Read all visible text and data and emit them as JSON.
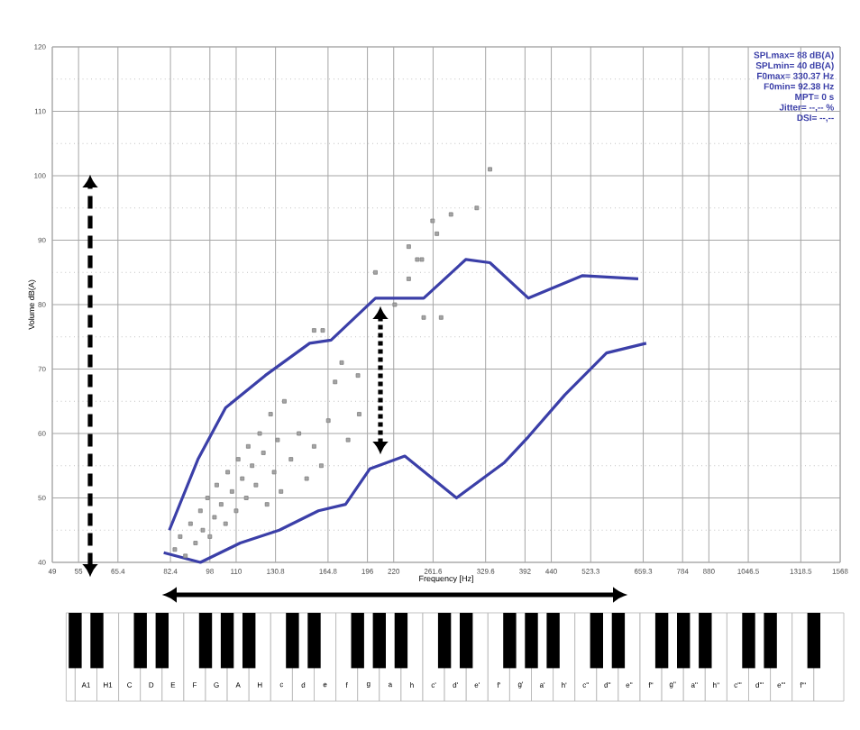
{
  "chart_data": [
    {
      "type": "scatter",
      "xlabel": "Frequency [Hz]",
      "ylabel": "Volume dB(A)",
      "log": "x",
      "grid": true,
      "xlim": [
        49,
        1568
      ],
      "ylim": [
        40,
        120
      ],
      "xticks": [
        49,
        55,
        65.4,
        82.4,
        98,
        110,
        130.8,
        164.8,
        196,
        220,
        261.6,
        329.6,
        392,
        440,
        523.3,
        659.3,
        784,
        880,
        1046.5,
        1318.5,
        1568
      ],
      "yticks": [
        40,
        50,
        60,
        70,
        80,
        90,
        100,
        110,
        120
      ],
      "series": [
        {
          "type": "scatter",
          "marker": "square",
          "color": "#7f7f7f",
          "x": [
            84,
            86,
            88,
            90,
            92,
            94,
            95,
            97,
            98,
            100,
            101,
            103,
            105,
            106,
            108,
            110,
            111,
            113,
            115,
            116,
            118,
            120,
            122,
            124,
            126,
            128,
            130,
            132,
            134,
            136,
            140,
            145,
            150,
            155,
            160,
            165,
            170,
            180,
            188,
            155,
            161,
            175,
            189,
            203,
            221,
            235,
            244,
            235,
            251,
            249,
            266,
            261,
            283,
            317,
            336,
            271
          ],
          "values": [
            42,
            44,
            41,
            46,
            43,
            48,
            45,
            50,
            44,
            47,
            52,
            49,
            46,
            54,
            51,
            48,
            56,
            53,
            50,
            58,
            55,
            52,
            60,
            57,
            49,
            63,
            54,
            59,
            51,
            65,
            56,
            60,
            53,
            58,
            55,
            62,
            68,
            59,
            69,
            76,
            76,
            71,
            63,
            85,
            80,
            89,
            87,
            84,
            78,
            87,
            91,
            93,
            94,
            95,
            101,
            78
          ]
        },
        {
          "type": "line",
          "marker": "none",
          "color": "#3b3fa8",
          "x": [
            82,
            93,
            105,
            125,
            152,
            167,
            203,
            219,
            251,
            302,
            336,
            398,
            505,
            645
          ],
          "values": [
            45,
            56,
            64,
            69,
            74,
            74.5,
            81,
            81,
            81,
            87,
            86.5,
            81,
            84.5,
            84
          ]
        },
        {
          "type": "line",
          "marker": "none",
          "color": "#3b3fa8",
          "x": [
            80,
            94,
            112,
            133,
            158,
            178,
            198,
            231,
            261,
            290,
            358,
            398,
            467,
            561,
            668
          ],
          "values": [
            41.5,
            40,
            43,
            45,
            48,
            49,
            54.5,
            56.5,
            53,
            50,
            55.5,
            59.5,
            66,
            72.5,
            74
          ]
        }
      ],
      "annotations": [
        "SPLmax= 88 dB(A)",
        "SPLmin= 40 dB(A)",
        "F0max= 330.37 Hz",
        "F0min= 92.38 Hz",
        "MPT= 0 s",
        "Jitter= --,-- %",
        "DSI= --,--"
      ]
    },
    {
      "type": "other",
      "categories": [
        null,
        "A1",
        "H1",
        "C",
        "D",
        "E",
        "F",
        "G",
        "A",
        "H",
        "c",
        "d",
        "e",
        "f",
        "g",
        "a",
        "h",
        "c'",
        "d'",
        "e'",
        "f'",
        "g'",
        "a'",
        "h'",
        "c''",
        "d''",
        "e''",
        "f''",
        "g''",
        "a''",
        "h''",
        "c'''",
        "d'''",
        "e'''",
        "f'''",
        null
      ]
    }
  ]
}
